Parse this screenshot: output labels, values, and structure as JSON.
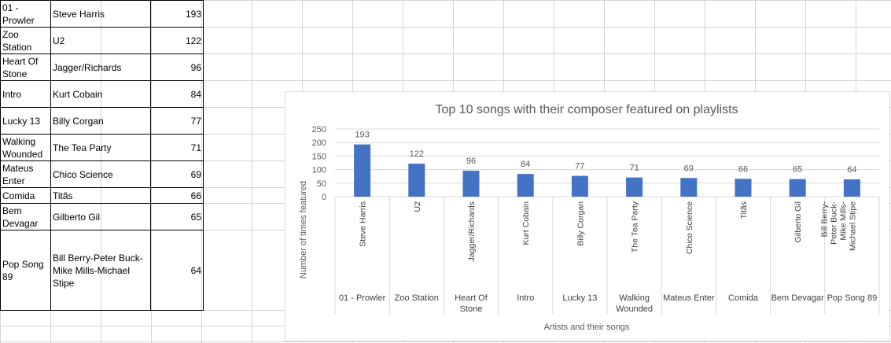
{
  "table": {
    "rows": [
      {
        "song": "01 - Prowler",
        "composer": "Steve Harris",
        "count": "193"
      },
      {
        "song": "Zoo Station",
        "composer": "U2",
        "count": "122"
      },
      {
        "song": "Heart Of Stone",
        "composer": "Jagger/Richards",
        "count": "96"
      },
      {
        "song": "Intro",
        "composer": "Kurt Cobain",
        "count": "84"
      },
      {
        "song": "Lucky 13",
        "composer": "Billy Corgan",
        "count": "77"
      },
      {
        "song": "Walking Wounded",
        "composer": "The Tea Party",
        "count": "71"
      },
      {
        "song": "Mateus Enter",
        "composer": "Chico Science",
        "count": "69"
      },
      {
        "song": "Comida",
        "composer": "Titãs",
        "count": "66"
      },
      {
        "song": "Bem Devagar",
        "composer": "Gilberto Gil",
        "count": "65"
      },
      {
        "song": "Pop Song 89",
        "composer": "Bill Berry-Peter Buck-Mike Mills-Michael Stipe",
        "count": "64"
      }
    ]
  },
  "chart_data": {
    "type": "bar",
    "title": "Top 10 songs with their composer featured on playlists",
    "xlabel": "Artists and their songs",
    "ylabel": "Number of times featured",
    "ylim": [
      0,
      250
    ],
    "yticks": [
      0,
      50,
      100,
      150,
      200,
      250
    ],
    "grid": true,
    "legend": "none",
    "bar_color": "#4472c4",
    "categories": [
      {
        "composer": "Steve Harris",
        "song": "01 - Prowler"
      },
      {
        "composer": "U2",
        "song": "Zoo Station"
      },
      {
        "composer": "Jagger/Richards",
        "song": "Heart Of Stone"
      },
      {
        "composer": "Kurt Cobain",
        "song": "Intro"
      },
      {
        "composer": "Billy Corgan",
        "song": "Lucky 13"
      },
      {
        "composer": "The Tea Party",
        "song": "Walking Wounded"
      },
      {
        "composer": "Chico Science",
        "song": "Mateus Enter"
      },
      {
        "composer": "Titãs",
        "song": "Comida"
      },
      {
        "composer": "Gilberto Gil",
        "song": "Bem Devagar"
      },
      {
        "composer": "Bill Berry-Peter Buck-Mike Mills-Michael Stipe",
        "song": "Pop Song 89"
      }
    ],
    "values": [
      193,
      122,
      96,
      84,
      77,
      71,
      69,
      66,
      65,
      64
    ]
  }
}
